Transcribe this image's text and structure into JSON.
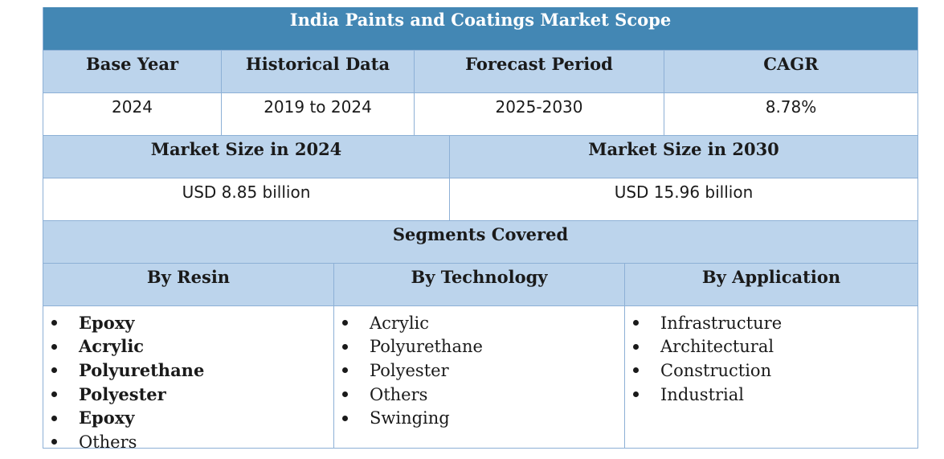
{
  "title": "India Paints and Coatings Market Scope",
  "overview": {
    "headers": [
      "Base Year",
      "Historical Data",
      "Forecast Period",
      "CAGR"
    ],
    "values": [
      "2024",
      "2019 to 2024",
      "2025-2030",
      "8.78%"
    ]
  },
  "market_size": {
    "headers": [
      "Market Size in 2024",
      "Market Size in 2030"
    ],
    "values": [
      "USD 8.85 billion",
      "USD 15.96 billion"
    ]
  },
  "segments": {
    "heading": "Segments Covered",
    "columns": [
      {
        "label": "By Resin",
        "items": [
          {
            "text": "Epoxy",
            "bold": true
          },
          {
            "text": "Acrylic",
            "bold": true
          },
          {
            "text": "Polyurethane",
            "bold": true
          },
          {
            "text": "Polyester",
            "bold": true
          },
          {
            "text": "Epoxy",
            "bold": true
          },
          {
            "text": "Others",
            "bold": false
          }
        ]
      },
      {
        "label": "By Technology",
        "items": [
          {
            "text": "Acrylic",
            "bold": false
          },
          {
            "text": "Polyurethane",
            "bold": false
          },
          {
            "text": "Polyester",
            "bold": false
          },
          {
            "text": "Others",
            "bold": false
          },
          {
            "text": "Swinging",
            "bold": false
          }
        ]
      },
      {
        "label": "By Application",
        "items": [
          {
            "text": "Infrastructure",
            "bold": false
          },
          {
            "text": "Architectural",
            "bold": false
          },
          {
            "text": "Construction",
            "bold": false
          },
          {
            "text": "Industrial",
            "bold": false
          }
        ]
      }
    ]
  }
}
